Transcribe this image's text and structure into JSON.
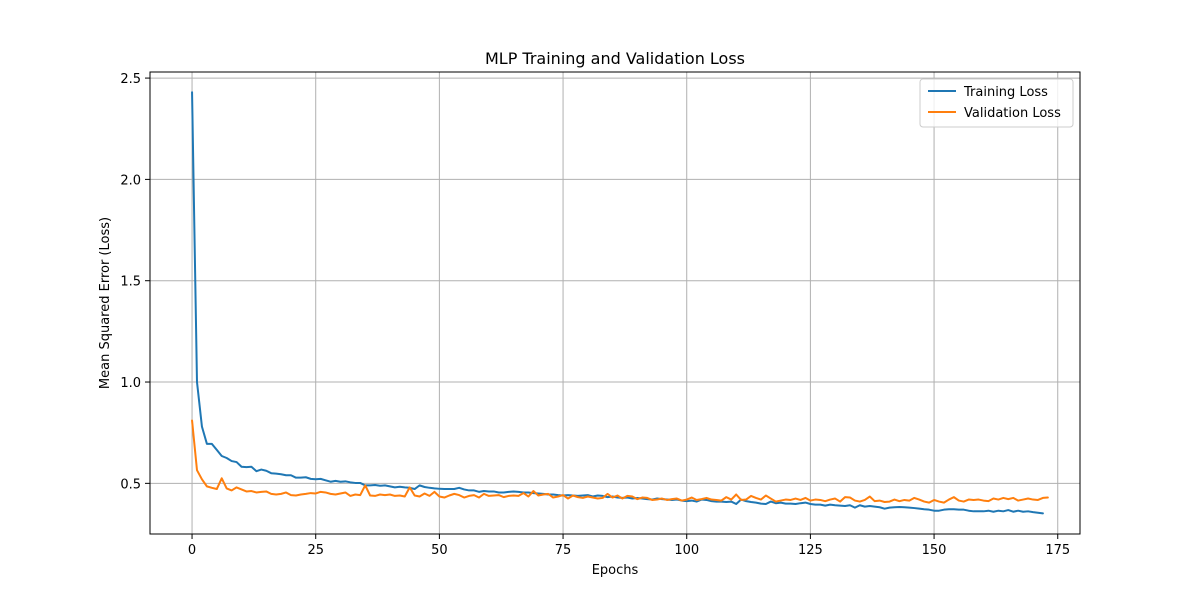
{
  "chart_data": {
    "type": "line",
    "title": "MLP Training and Validation Loss",
    "xlabel": "Epochs",
    "ylabel": "Mean Squared Error (Loss)",
    "xlim": [
      -8.5,
      179.5
    ],
    "ylim": [
      0.25,
      2.53
    ],
    "xticks": [
      0,
      25,
      50,
      75,
      100,
      125,
      150,
      175
    ],
    "yticks": [
      0.5,
      1.0,
      1.5,
      2.0,
      2.5
    ],
    "ytick_labels": [
      "0.5",
      "1.0",
      "1.5",
      "2.0",
      "2.5"
    ],
    "grid": true,
    "legend_position": "top-right",
    "series": [
      {
        "name": "Training Loss",
        "color": "#1f77b4",
        "values": [
          2.43,
          1.0,
          0.78,
          0.695,
          0.695,
          0.665,
          0.635,
          0.625,
          0.61,
          0.605,
          0.582,
          0.58,
          0.582,
          0.56,
          0.568,
          0.562,
          0.55,
          0.548,
          0.545,
          0.54,
          0.54,
          0.528,
          0.528,
          0.53,
          0.522,
          0.52,
          0.522,
          0.515,
          0.508,
          0.512,
          0.508,
          0.51,
          0.505,
          0.502,
          0.502,
          0.49,
          0.49,
          0.492,
          0.488,
          0.49,
          0.485,
          0.48,
          0.483,
          0.48,
          0.478,
          0.472,
          0.49,
          0.482,
          0.478,
          0.475,
          0.473,
          0.472,
          0.472,
          0.472,
          0.478,
          0.47,
          0.465,
          0.465,
          0.458,
          0.462,
          0.46,
          0.46,
          0.455,
          0.455,
          0.458,
          0.46,
          0.458,
          0.455,
          0.455,
          0.452,
          0.45,
          0.448,
          0.445,
          0.445,
          0.442,
          0.44,
          0.442,
          0.44,
          0.438,
          0.44,
          0.442,
          0.435,
          0.44,
          0.438,
          0.432,
          0.435,
          0.43,
          0.428,
          0.43,
          0.425,
          0.428,
          0.425,
          0.422,
          0.42,
          0.425,
          0.422,
          0.42,
          0.418,
          0.42,
          0.415,
          0.412,
          0.415,
          0.41,
          0.42,
          0.418,
          0.412,
          0.41,
          0.41,
          0.408,
          0.41,
          0.398,
          0.42,
          0.412,
          0.408,
          0.405,
          0.4,
          0.398,
          0.41,
          0.402,
          0.405,
          0.4,
          0.4,
          0.398,
          0.402,
          0.405,
          0.398,
          0.395,
          0.395,
          0.39,
          0.395,
          0.392,
          0.39,
          0.388,
          0.392,
          0.38,
          0.392,
          0.385,
          0.388,
          0.385,
          0.382,
          0.375,
          0.38,
          0.382,
          0.383,
          0.382,
          0.38,
          0.378,
          0.375,
          0.372,
          0.37,
          0.365,
          0.365,
          0.37,
          0.372,
          0.372,
          0.37,
          0.37,
          0.365,
          0.362,
          0.362,
          0.362,
          0.365,
          0.36,
          0.365,
          0.362,
          0.368,
          0.36,
          0.365,
          0.36,
          0.362,
          0.358,
          0.355,
          0.352
        ]
      },
      {
        "name": "Validation Loss",
        "color": "#ff7f0e",
        "values": [
          0.81,
          0.565,
          0.52,
          0.485,
          0.478,
          0.472,
          0.525,
          0.475,
          0.465,
          0.48,
          0.47,
          0.46,
          0.462,
          0.455,
          0.458,
          0.46,
          0.448,
          0.445,
          0.448,
          0.455,
          0.442,
          0.44,
          0.445,
          0.448,
          0.452,
          0.45,
          0.458,
          0.455,
          0.448,
          0.445,
          0.45,
          0.455,
          0.438,
          0.445,
          0.442,
          0.49,
          0.44,
          0.438,
          0.445,
          0.442,
          0.445,
          0.438,
          0.44,
          0.435,
          0.48,
          0.44,
          0.435,
          0.45,
          0.438,
          0.458,
          0.435,
          0.43,
          0.44,
          0.448,
          0.442,
          0.43,
          0.438,
          0.442,
          0.43,
          0.448,
          0.438,
          0.44,
          0.442,
          0.432,
          0.438,
          0.44,
          0.438,
          0.452,
          0.435,
          0.462,
          0.44,
          0.445,
          0.448,
          0.43,
          0.435,
          0.442,
          0.425,
          0.44,
          0.432,
          0.428,
          0.435,
          0.43,
          0.425,
          0.428,
          0.448,
          0.43,
          0.44,
          0.425,
          0.438,
          0.435,
          0.422,
          0.43,
          0.428,
          0.418,
          0.42,
          0.425,
          0.418,
          0.422,
          0.425,
          0.415,
          0.42,
          0.43,
          0.418,
          0.422,
          0.428,
          0.42,
          0.418,
          0.415,
          0.432,
          0.42,
          0.445,
          0.418,
          0.42,
          0.438,
          0.428,
          0.42,
          0.44,
          0.425,
          0.41,
          0.415,
          0.42,
          0.418,
          0.425,
          0.418,
          0.428,
          0.415,
          0.42,
          0.418,
          0.412,
          0.42,
          0.425,
          0.41,
          0.432,
          0.43,
          0.415,
          0.41,
          0.418,
          0.435,
          0.412,
          0.415,
          0.408,
          0.41,
          0.42,
          0.412,
          0.418,
          0.415,
          0.428,
          0.42,
          0.41,
          0.405,
          0.418,
          0.41,
          0.405,
          0.42,
          0.432,
          0.415,
          0.41,
          0.42,
          0.418,
          0.42,
          0.415,
          0.412,
          0.425,
          0.42,
          0.428,
          0.422,
          0.428,
          0.415,
          0.42,
          0.425,
          0.42,
          0.418,
          0.428,
          0.43
        ]
      }
    ]
  }
}
